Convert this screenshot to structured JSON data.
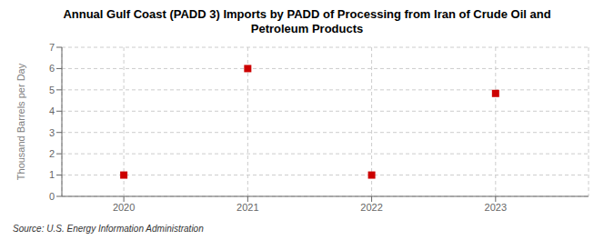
{
  "chart_data": {
    "type": "scatter",
    "title": "Annual Gulf Coast (PADD 3) Imports by PADD of Processing from Iran of Crude Oil and\nPetroleum Products",
    "ylabel": "Thousand Barrels per Day",
    "source": "Source: U.S. Energy Information Administration",
    "x": [
      2020,
      2021,
      2022,
      2023
    ],
    "values": [
      1,
      6,
      1,
      4.833
    ],
    "color": "#cc0000",
    "marker": "square",
    "xlim": [
      2019.5,
      2023.75
    ],
    "ylim": [
      0,
      7
    ],
    "xticks": [
      2020,
      2021,
      2022,
      2023
    ],
    "yticks": [
      0,
      1,
      2,
      3,
      4,
      5,
      6,
      7
    ],
    "grid": true
  }
}
